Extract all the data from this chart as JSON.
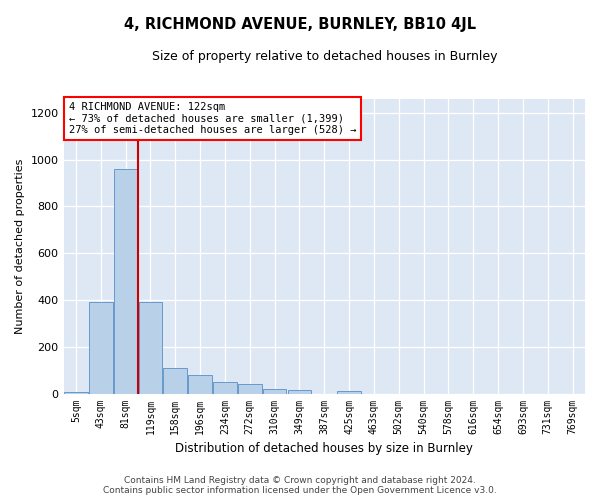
{
  "title": "4, RICHMOND AVENUE, BURNLEY, BB10 4JL",
  "subtitle": "Size of property relative to detached houses in Burnley",
  "xlabel": "Distribution of detached houses by size in Burnley",
  "ylabel": "Number of detached properties",
  "categories": [
    "5sqm",
    "43sqm",
    "81sqm",
    "119sqm",
    "158sqm",
    "196sqm",
    "234sqm",
    "272sqm",
    "310sqm",
    "349sqm",
    "387sqm",
    "425sqm",
    "463sqm",
    "502sqm",
    "540sqm",
    "578sqm",
    "616sqm",
    "654sqm",
    "693sqm",
    "731sqm",
    "769sqm"
  ],
  "values": [
    5,
    390,
    960,
    390,
    110,
    80,
    50,
    40,
    20,
    15,
    0,
    12,
    0,
    0,
    0,
    0,
    0,
    0,
    0,
    0,
    0
  ],
  "bar_color": "#b8d0e8",
  "bar_edge_color": "#6699cc",
  "red_line_x": 2.5,
  "red_line_color": "#cc0000",
  "annotation_text_line1": "4 RICHMOND AVENUE: 122sqm",
  "annotation_text_line2": "← 73% of detached houses are smaller (1,399)",
  "annotation_text_line3": "27% of semi-detached houses are larger (528) →",
  "ylim": [
    0,
    1260
  ],
  "yticks": [
    0,
    200,
    400,
    600,
    800,
    1000,
    1200
  ],
  "background_color": "#ffffff",
  "grid_color": "#dde8f4",
  "footer_line1": "Contains HM Land Registry data © Crown copyright and database right 2024.",
  "footer_line2": "Contains public sector information licensed under the Open Government Licence v3.0."
}
